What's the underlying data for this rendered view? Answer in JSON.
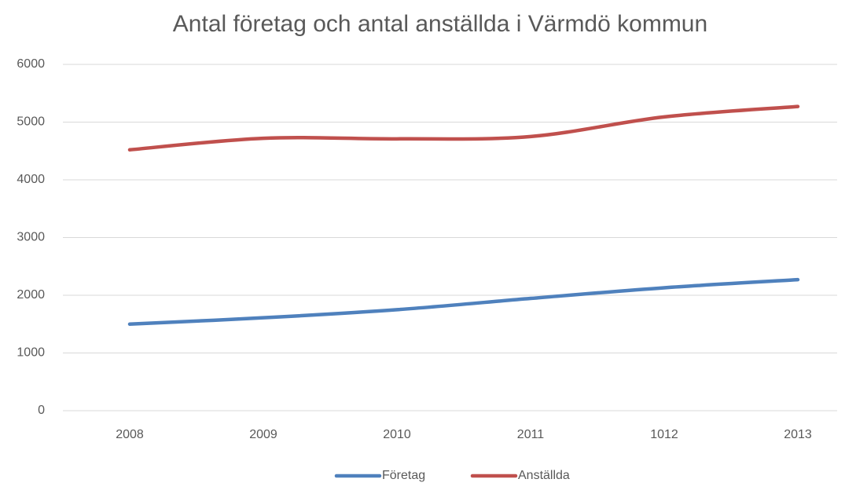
{
  "chart_data": {
    "type": "line",
    "title": "Antal företag och antal anställda i Värmdö kommun",
    "categories": [
      "2008",
      "2009",
      "2010",
      "2011",
      "1012",
      "2013"
    ],
    "series": [
      {
        "name": "Företag",
        "color": "#4f81bd",
        "values": [
          1500,
          1610,
          1750,
          1945,
          2130,
          2270
        ]
      },
      {
        "name": "Anställda",
        "color": "#c0504d",
        "values": [
          4520,
          4720,
          4710,
          4750,
          5090,
          5270
        ]
      }
    ],
    "ylim": [
      0,
      6000
    ],
    "yticks": [
      0,
      1000,
      2000,
      3000,
      4000,
      5000,
      6000
    ],
    "grid": true,
    "legend": "bottom"
  }
}
